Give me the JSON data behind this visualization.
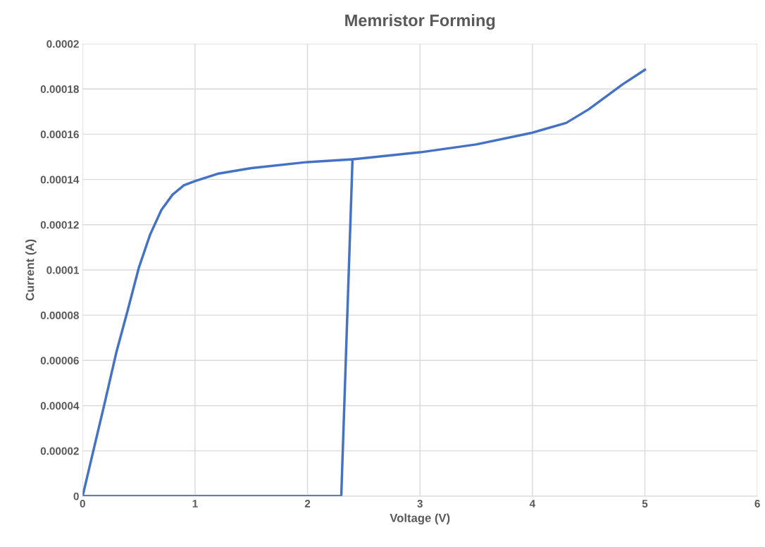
{
  "chart_data": {
    "type": "line",
    "title": "Memristor Forming",
    "xlabel": "Voltage (V)",
    "ylabel": "Current (A)",
    "series": [
      {
        "color": "#4472c4",
        "x": [
          5,
          4.8,
          4.5,
          4.3,
          4,
          3.5,
          3,
          2.4,
          2,
          1.5,
          1.2,
          1,
          0.9,
          0.8,
          0.7,
          0.6,
          0.5,
          0.4,
          0.3,
          0.2,
          0.1,
          0,
          2.3,
          2.4
        ],
        "values": [
          0.0001885,
          0.000182,
          0.000171,
          0.000165,
          0.0001607,
          0.0001555,
          0.000152,
          0.0001489,
          0.0001477,
          0.000145,
          0.0001425,
          0.0001393,
          0.0001374,
          0.0001333,
          0.0001265,
          0.0001156,
          0.000101,
          8.2e-05,
          6.36e-05,
          4.2e-05,
          2.1e-05,
          0,
          0,
          0.0001489
        ]
      }
    ],
    "xlim": [
      0,
      6
    ],
    "xticks": [
      0,
      1,
      2,
      3,
      4,
      5,
      6
    ],
    "ylim": [
      0,
      0.0002
    ],
    "yticks": [
      {
        "value": 0,
        "label": "0"
      },
      {
        "value": 2e-05,
        "label": "0.00002"
      },
      {
        "value": 4e-05,
        "label": "0.00004"
      },
      {
        "value": 6e-05,
        "label": "0.00006"
      },
      {
        "value": 8e-05,
        "label": "0.00008"
      },
      {
        "value": 0.0001,
        "label": "0.0001"
      },
      {
        "value": 0.00012,
        "label": "0.00012"
      },
      {
        "value": 0.00014,
        "label": "0.00014"
      },
      {
        "value": 0.00016,
        "label": "0.00016"
      },
      {
        "value": 0.00018,
        "label": "0.00018"
      },
      {
        "value": 0.0002,
        "label": "0.0002"
      }
    ],
    "grid": true,
    "marker": "none",
    "line_style": "solid"
  }
}
